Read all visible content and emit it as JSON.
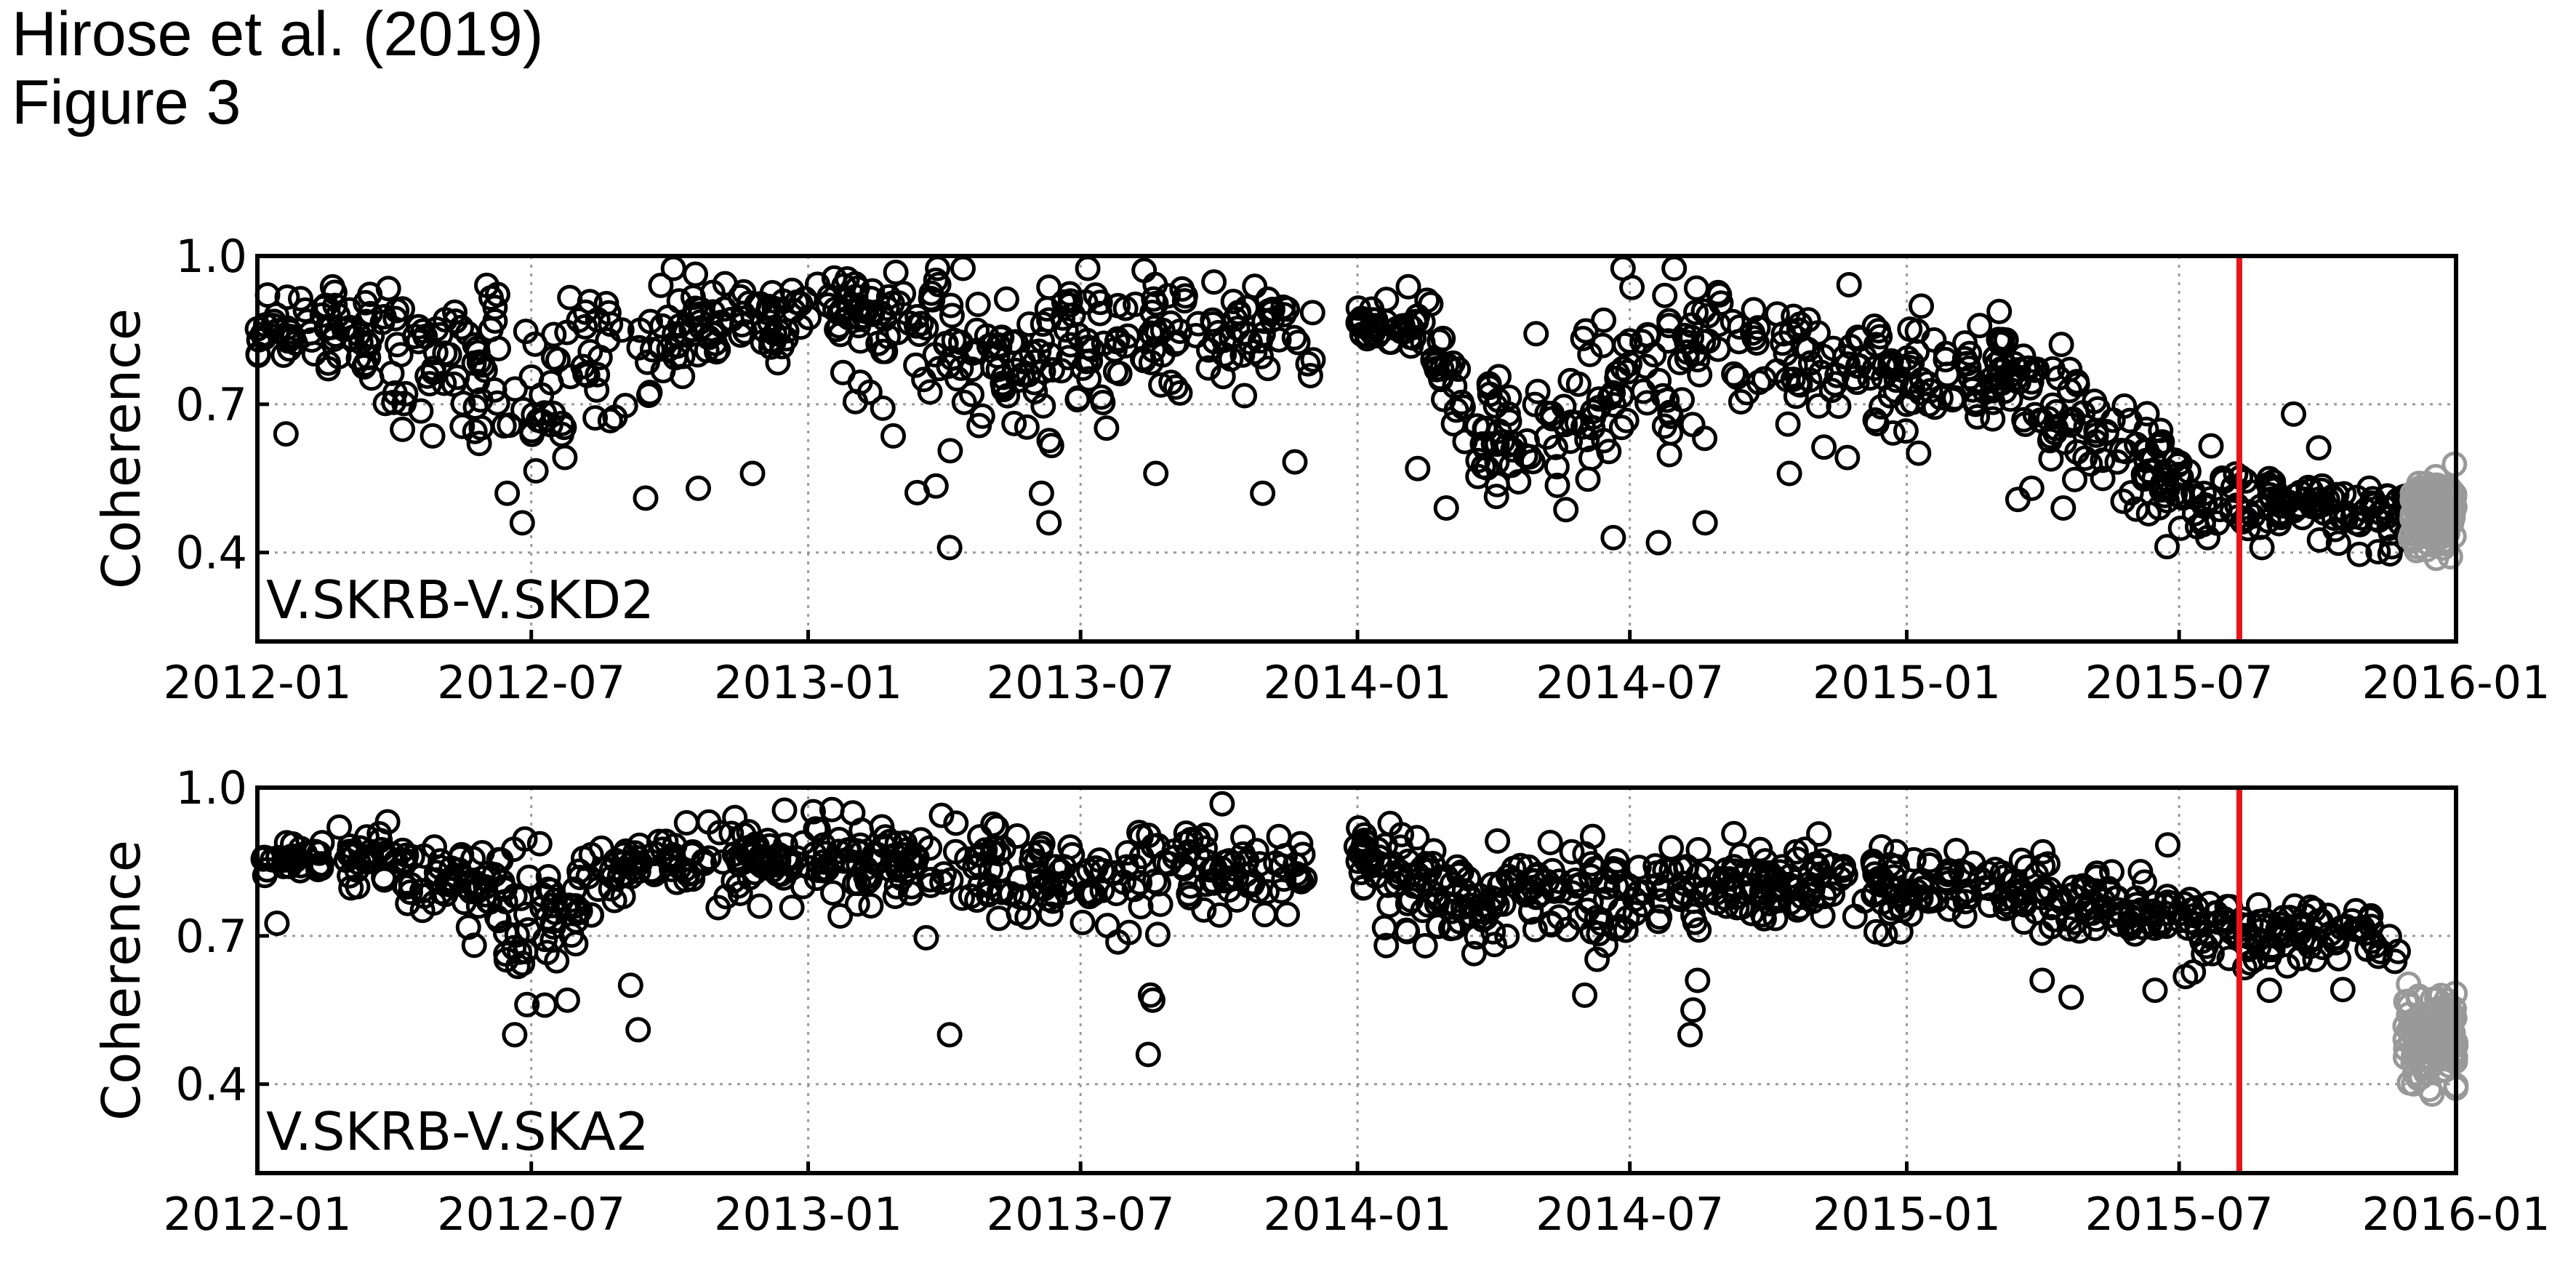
{
  "figure": {
    "title_line1": "Hirose et al. (2019)",
    "title_line2": "Figure 3"
  },
  "chart_data": [
    {
      "type": "scatter",
      "panel_label": "V.SKRB-V.SKD2",
      "ylabel": "Coherence",
      "xlabel": "",
      "xlim": [
        "2012-01-01",
        "2016-01-01"
      ],
      "ylim": [
        0.22,
        1.0
      ],
      "yticks": [
        0.4,
        0.7,
        1.0
      ],
      "ytick_labels": [
        "0.4",
        "0.7",
        "1.0"
      ],
      "xtick_labels": [
        "2012-01",
        "2012-07",
        "2013-01",
        "2013-07",
        "2014-01",
        "2014-07",
        "2015-01",
        "2015-07",
        "2016-01"
      ],
      "grid": true,
      "marker": "open-circle",
      "colors": {
        "main": "#000000",
        "late": "#999999",
        "event_line": "#e8141b"
      },
      "event_date": "2015-08-10",
      "gap": [
        "2013-12-03",
        "2013-12-31"
      ],
      "trend_points": [
        [
          "2012-01-01",
          0.85,
          0.04
        ],
        [
          "2012-03-01",
          0.86,
          0.05
        ],
        [
          "2012-05-01",
          0.8,
          0.08
        ],
        [
          "2012-07-01",
          0.7,
          0.12
        ],
        [
          "2012-09-01",
          0.84,
          0.07
        ],
        [
          "2012-12-01",
          0.88,
          0.05
        ],
        [
          "2013-03-01",
          0.89,
          0.06
        ],
        [
          "2013-05-01",
          0.8,
          0.1
        ],
        [
          "2013-07-01",
          0.82,
          0.1
        ],
        [
          "2013-09-01",
          0.85,
          0.07
        ],
        [
          "2013-11-30",
          0.84,
          0.08
        ],
        [
          "2014-01-01",
          0.86,
          0.03
        ],
        [
          "2014-02-15",
          0.87,
          0.04
        ],
        [
          "2014-03-15",
          0.66,
          0.09
        ],
        [
          "2014-05-15",
          0.62,
          0.08
        ],
        [
          "2014-07-01",
          0.8,
          0.1
        ],
        [
          "2014-09-15",
          0.84,
          0.07
        ],
        [
          "2014-12-01",
          0.78,
          0.07
        ],
        [
          "2015-03-01",
          0.76,
          0.07
        ],
        [
          "2015-05-01",
          0.68,
          0.08
        ],
        [
          "2015-07-01",
          0.52,
          0.05
        ],
        [
          "2015-10-01",
          0.5,
          0.04
        ],
        [
          "2015-12-01",
          0.47,
          0.04
        ]
      ],
      "late_points": [
        [
          "2015-12-01",
          0.48,
          0.04
        ],
        [
          "2016-01-01",
          0.47,
          0.04
        ]
      ],
      "outliers": [
        [
          "2012-01-20",
          0.64
        ],
        [
          "2012-06-25",
          0.46
        ],
        [
          "2012-06-15",
          0.52
        ],
        [
          "2012-09-15",
          0.51
        ],
        [
          "2012-10-20",
          0.53
        ],
        [
          "2012-11-25",
          0.56
        ],
        [
          "2013-04-05",
          0.41
        ],
        [
          "2013-06-10",
          0.46
        ],
        [
          "2013-06-05",
          0.52
        ],
        [
          "2013-08-20",
          0.56
        ],
        [
          "2013-10-30",
          0.52
        ],
        [
          "2014-02-10",
          0.57
        ],
        [
          "2014-03-01",
          0.49
        ],
        [
          "2014-06-20",
          0.43
        ],
        [
          "2014-07-20",
          0.42
        ],
        [
          "2014-08-20",
          0.46
        ],
        [
          "2014-10-15",
          0.56
        ],
        [
          "2015-04-15",
          0.49
        ],
        [
          "2015-03-25",
          0.53
        ],
        [
          "2015-09-15",
          0.68
        ],
        [
          "2015-07-20",
          0.43
        ],
        [
          "2015-08-25",
          0.41
        ]
      ]
    },
    {
      "type": "scatter",
      "panel_label": "V.SKRB-V.SKA2",
      "ylabel": "Coherence",
      "xlabel": "",
      "xlim": [
        "2012-01-01",
        "2016-01-01"
      ],
      "ylim": [
        0.22,
        1.0
      ],
      "yticks": [
        0.4,
        0.7,
        1.0
      ],
      "ytick_labels": [
        "0.4",
        "0.7",
        "1.0"
      ],
      "xtick_labels": [
        "2012-01",
        "2012-07",
        "2013-01",
        "2013-07",
        "2014-01",
        "2014-07",
        "2015-01",
        "2015-07",
        "2016-01"
      ],
      "grid": true,
      "marker": "open-circle",
      "colors": {
        "main": "#000000",
        "late": "#999999",
        "event_line": "#e8141b"
      },
      "event_date": "2015-08-10",
      "gap": [
        "2013-12-03",
        "2013-12-31"
      ],
      "trend_points": [
        [
          "2012-01-01",
          0.86,
          0.03
        ],
        [
          "2012-04-01",
          0.86,
          0.04
        ],
        [
          "2012-06-01",
          0.78,
          0.07
        ],
        [
          "2012-07-01",
          0.72,
          0.09
        ],
        [
          "2012-09-01",
          0.84,
          0.05
        ],
        [
          "2012-12-01",
          0.86,
          0.04
        ],
        [
          "2013-03-01",
          0.86,
          0.05
        ],
        [
          "2013-06-01",
          0.82,
          0.06
        ],
        [
          "2013-09-01",
          0.83,
          0.06
        ],
        [
          "2013-11-30",
          0.84,
          0.05
        ],
        [
          "2014-01-01",
          0.87,
          0.03
        ],
        [
          "2014-03-01",
          0.8,
          0.06
        ],
        [
          "2014-06-01",
          0.78,
          0.06
        ],
        [
          "2014-09-01",
          0.81,
          0.05
        ],
        [
          "2014-12-01",
          0.8,
          0.05
        ],
        [
          "2015-03-01",
          0.8,
          0.05
        ],
        [
          "2015-06-01",
          0.76,
          0.04
        ],
        [
          "2015-08-15",
          0.72,
          0.04
        ],
        [
          "2015-11-01",
          0.7,
          0.03
        ],
        [
          "2015-11-25",
          0.68,
          0.03
        ]
      ],
      "late_points": [
        [
          "2015-11-28",
          0.5,
          0.06
        ],
        [
          "2016-01-01",
          0.49,
          0.05
        ]
      ],
      "outliers": [
        [
          "2012-06-20",
          0.5
        ],
        [
          "2012-07-10",
          0.56
        ],
        [
          "2012-07-25",
          0.57
        ],
        [
          "2012-09-10",
          0.51
        ],
        [
          "2012-09-05",
          0.6
        ],
        [
          "2013-04-05",
          0.5
        ],
        [
          "2013-08-15",
          0.46
        ],
        [
          "2013-08-18",
          0.57
        ],
        [
          "2014-06-01",
          0.58
        ],
        [
          "2014-08-10",
          0.5
        ],
        [
          "2014-08-12",
          0.55
        ],
        [
          "2014-08-15",
          0.61
        ],
        [
          "2015-06-15",
          0.59
        ],
        [
          "2015-08-30",
          0.59
        ],
        [
          "2015-04-01",
          0.61
        ],
        [
          "2014-02-15",
          0.68
        ]
      ]
    }
  ]
}
